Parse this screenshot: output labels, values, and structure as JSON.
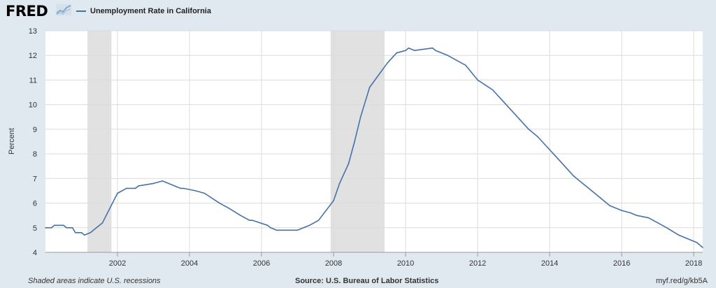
{
  "brand": {
    "logo_text": "FRED",
    "logo_mark_icon": "fred-sparkline-icon"
  },
  "colors": {
    "series": "#4572a7",
    "recession": "#e1e1e1",
    "grid": "#dcdcdc",
    "background": "#e1e9f0",
    "plot_bg": "#ffffff"
  },
  "footer": {
    "note": "Shaded areas indicate U.S. recessions",
    "source": "Source: U.S. Bureau of Labor Statistics",
    "short_url": "myf.red/g/kb5A"
  },
  "chart_data": {
    "type": "line",
    "title": "",
    "xlabel": "",
    "ylabel": "Percent",
    "xlim": [
      2000.0,
      2018.25
    ],
    "ylim": [
      4,
      13
    ],
    "yticks": [
      4,
      5,
      6,
      7,
      8,
      9,
      10,
      11,
      12,
      13
    ],
    "xticks": [
      "2002",
      "2004",
      "2006",
      "2008",
      "2010",
      "2012",
      "2014",
      "2016",
      "2018"
    ],
    "grid": true,
    "legend_position": "top-left",
    "recessions": [
      {
        "start": "2001-03",
        "end": "2001-11"
      },
      {
        "start": "2007-12",
        "end": "2009-06"
      }
    ],
    "series": [
      {
        "name": "Unemployment Rate in California",
        "x": [
          "2000-01",
          "2000-03",
          "2000-04",
          "2000-07",
          "2000-08",
          "2000-10",
          "2000-11",
          "2001-01",
          "2001-02",
          "2001-04",
          "2001-08",
          "2002-01",
          "2002-04",
          "2002-07",
          "2002-08",
          "2003-01",
          "2003-04",
          "2003-10",
          "2003-11",
          "2004-03",
          "2004-06",
          "2004-11",
          "2005-02",
          "2005-06",
          "2005-09",
          "2005-10",
          "2006-03",
          "2006-04",
          "2006-06",
          "2007-01",
          "2007-05",
          "2007-08",
          "2008-01",
          "2008-03",
          "2008-06",
          "2008-08",
          "2008-10",
          "2009-01",
          "2009-04",
          "2009-07",
          "2009-10",
          "2010-01",
          "2010-02",
          "2010-04",
          "2010-10",
          "2010-11",
          "2011-03",
          "2011-06",
          "2011-09",
          "2012-01",
          "2012-06",
          "2012-09",
          "2012-12",
          "2013-03",
          "2013-06",
          "2013-09",
          "2013-12",
          "2014-03",
          "2014-06",
          "2014-09",
          "2014-12",
          "2015-03",
          "2015-06",
          "2015-09",
          "2016-01",
          "2016-04",
          "2016-06",
          "2016-10",
          "2017-01",
          "2017-04",
          "2017-08",
          "2017-12",
          "2018-02",
          "2018-04"
        ],
        "values": [
          5.0,
          5.0,
          5.1,
          5.1,
          5.0,
          5.0,
          4.8,
          4.8,
          4.7,
          4.8,
          5.2,
          6.4,
          6.6,
          6.6,
          6.7,
          6.8,
          6.9,
          6.6,
          6.6,
          6.5,
          6.4,
          6.0,
          5.8,
          5.5,
          5.3,
          5.3,
          5.1,
          5.0,
          4.9,
          4.9,
          5.1,
          5.3,
          6.1,
          6.8,
          7.6,
          8.5,
          9.5,
          10.7,
          11.2,
          11.7,
          12.1,
          12.2,
          12.3,
          12.2,
          12.3,
          12.2,
          12.0,
          11.8,
          11.6,
          11.0,
          10.6,
          10.2,
          9.8,
          9.4,
          9.0,
          8.7,
          8.3,
          7.9,
          7.5,
          7.1,
          6.8,
          6.5,
          6.2,
          5.9,
          5.7,
          5.6,
          5.5,
          5.4,
          5.2,
          5.0,
          4.7,
          4.5,
          4.4,
          4.2
        ]
      }
    ]
  }
}
